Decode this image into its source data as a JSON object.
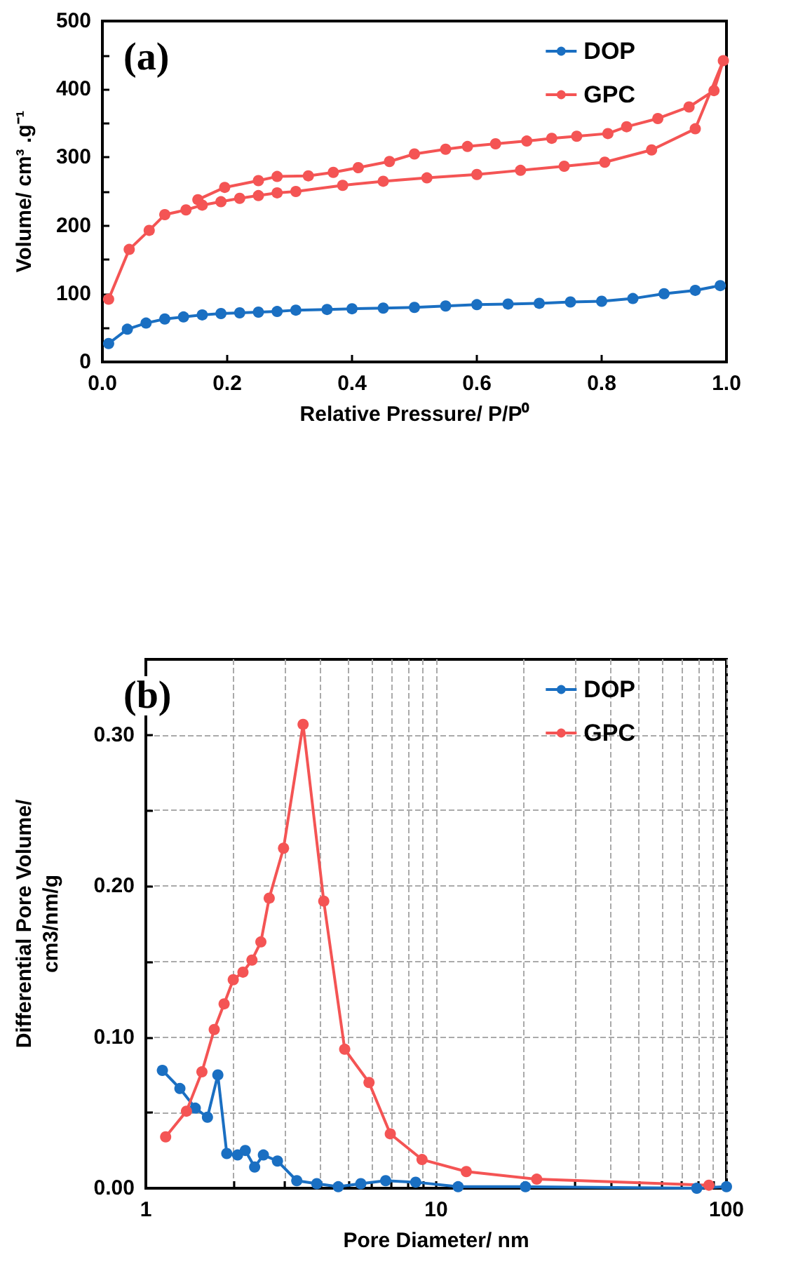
{
  "chart_data": [
    {
      "type": "line",
      "xlabel": "Relative Pressure/ P/P⁰",
      "ylabel": "Volume/ cm³ .g⁻¹",
      "annotations": [
        "(a)"
      ],
      "xlim": [
        0,
        1
      ],
      "xticks": [
        {
          "value": 0,
          "label": "0.0"
        },
        {
          "value": 0.2,
          "label": "0.2"
        },
        {
          "value": 0.4,
          "label": "0.4"
        },
        {
          "value": 0.6,
          "label": "0.6"
        },
        {
          "value": 0.8,
          "label": "0.8"
        },
        {
          "value": 1,
          "label": "1.0"
        }
      ],
      "ylim": [
        0,
        500
      ],
      "yticks": [
        0,
        {
          "value": 50,
          "label": null
        },
        100,
        {
          "value": 150,
          "label": null
        },
        200,
        {
          "value": 250,
          "label": null
        },
        300,
        {
          "value": 350,
          "label": null
        },
        400,
        {
          "value": 450,
          "label": null
        },
        500
      ],
      "grid": false,
      "legend": "top right",
      "marker": "circle",
      "line_style": "solid",
      "series": [
        {
          "name": "DOP",
          "color": "#1a6fc2",
          "x": [
            0.01,
            0.04,
            0.07,
            0.1,
            0.13,
            0.16,
            0.19,
            0.22,
            0.25,
            0.28,
            0.31,
            0.36,
            0.4,
            0.45,
            0.5,
            0.55,
            0.6,
            0.65,
            0.7,
            0.75,
            0.8,
            0.85,
            0.9,
            0.95,
            0.99
          ],
          "values": [
            27,
            48,
            57,
            63,
            66,
            69,
            71,
            72,
            73,
            74,
            76,
            77,
            78,
            79,
            80,
            82,
            84,
            85,
            86,
            88,
            89,
            93,
            100,
            105,
            112
          ]
        },
        {
          "name": "GPC",
          "color": "#f45454",
          "x": [
            0.01,
            0.043,
            0.075,
            0.1,
            0.134,
            0.16,
            0.19,
            0.22,
            0.25,
            0.28,
            0.31,
            0.385,
            0.45,
            0.52,
            0.6,
            0.67,
            0.74,
            0.805,
            0.88,
            0.95,
            0.995,
            0.98,
            0.94,
            0.89,
            0.84,
            0.81,
            0.76,
            0.72,
            0.68,
            0.63,
            0.585,
            0.55,
            0.5,
            0.46,
            0.41,
            0.37,
            0.33,
            0.28,
            0.25,
            0.196,
            0.153
          ],
          "values": [
            92,
            165,
            193,
            216,
            223,
            230,
            235,
            240,
            244,
            248,
            250,
            259,
            265,
            270,
            275,
            281,
            287,
            293,
            311,
            342,
            442,
            398,
            374,
            357,
            345,
            335,
            331,
            328,
            324,
            320,
            316,
            312,
            305,
            294,
            285,
            278,
            273,
            272,
            266,
            256,
            238
          ]
        }
      ]
    },
    {
      "type": "line",
      "xlabel": "Pore Diameter/ nm",
      "ylabel": "Differential Pore Volume/\ncm3/nm/g",
      "annotations": [
        "(b)"
      ],
      "log": "x",
      "xlim": [
        1,
        100
      ],
      "xticks": [
        1,
        {
          "value": 2,
          "label": null
        },
        {
          "value": 3,
          "label": null
        },
        {
          "value": 4,
          "label": null
        },
        {
          "value": 5,
          "label": null
        },
        {
          "value": 6,
          "label": null
        },
        {
          "value": 7,
          "label": null
        },
        {
          "value": 8,
          "label": null
        },
        {
          "value": 9,
          "label": null
        },
        10,
        {
          "value": 20,
          "label": null
        },
        {
          "value": 30,
          "label": null
        },
        {
          "value": 40,
          "label": null
        },
        {
          "value": 50,
          "label": null
        },
        {
          "value": 60,
          "label": null
        },
        {
          "value": 70,
          "label": null
        },
        {
          "value": 80,
          "label": null
        },
        {
          "value": 90,
          "label": null
        },
        100
      ],
      "ylim": [
        0,
        0.35
      ],
      "yticks": [
        {
          "value": 0,
          "label": "0.00"
        },
        {
          "value": 0.05,
          "label": null
        },
        {
          "value": 0.1,
          "label": "0.10"
        },
        {
          "value": 0.15,
          "label": null
        },
        {
          "value": 0.2,
          "label": "0.20"
        },
        {
          "value": 0.25,
          "label": null
        },
        {
          "value": 0.3,
          "label": "0.30"
        }
      ],
      "grid": true,
      "legend": "top right",
      "marker": "circle",
      "line_style": "solid",
      "series": [
        {
          "name": "DOP",
          "color": "#1a6fc2",
          "x": [
            1.14,
            1.31,
            1.48,
            1.63,
            1.77,
            1.9,
            2.07,
            2.2,
            2.37,
            2.54,
            2.84,
            3.31,
            3.88,
            4.6,
            5.5,
            6.7,
            8.5,
            11.9,
            20.3,
            79,
            100
          ],
          "values": [
            0.078,
            0.066,
            0.053,
            0.047,
            0.075,
            0.023,
            0.022,
            0.025,
            0.014,
            0.022,
            0.018,
            0.005,
            0.003,
            0.001,
            0.003,
            0.005,
            0.004,
            0.001,
            0.001,
            0,
            0.001
          ]
        },
        {
          "name": "GPC",
          "color": "#f45454",
          "x": [
            1.17,
            1.38,
            1.56,
            1.72,
            1.86,
            2,
            2.16,
            2.32,
            2.49,
            2.66,
            2.98,
            3.48,
            4.1,
            4.84,
            5.87,
            6.95,
            8.94,
            12.7,
            22.2,
            87
          ],
          "values": [
            0.034,
            0.051,
            0.077,
            0.105,
            0.122,
            0.138,
            0.143,
            0.151,
            0.163,
            0.192,
            0.225,
            0.307,
            0.19,
            0.092,
            0.07,
            0.036,
            0.019,
            0.011,
            0.006,
            0.002
          ]
        }
      ]
    }
  ]
}
